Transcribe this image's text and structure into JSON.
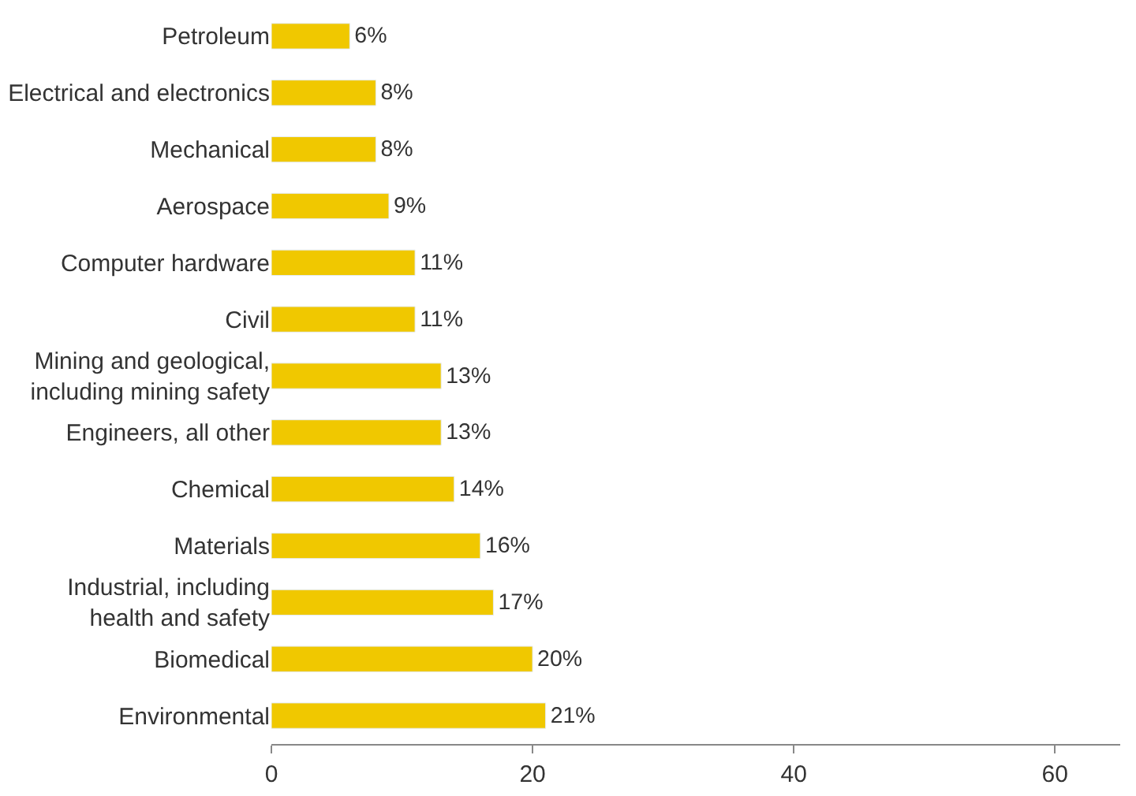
{
  "chart_data": {
    "type": "bar",
    "orientation": "horizontal",
    "categories": [
      "Petroleum",
      "Electrical and electronics",
      "Mechanical",
      "Aerospace",
      "Computer hardware",
      "Civil",
      "Mining and geological,\nincluding mining safety",
      "Engineers, all other",
      "Chemical",
      "Materials",
      "Industrial, including\nhealth and safety",
      "Biomedical",
      "Environmental"
    ],
    "values": [
      6,
      8,
      8,
      9,
      11,
      11,
      13,
      13,
      14,
      16,
      17,
      20,
      21
    ],
    "value_labels": [
      "6%",
      "8%",
      "8%",
      "9%",
      "11%",
      "11%",
      "13%",
      "13%",
      "14%",
      "16%",
      "17%",
      "20%",
      "21%"
    ],
    "color": "#f0c800",
    "xlim": [
      0,
      65
    ],
    "xticks": [
      0,
      20,
      40,
      60
    ],
    "legend": false
  }
}
